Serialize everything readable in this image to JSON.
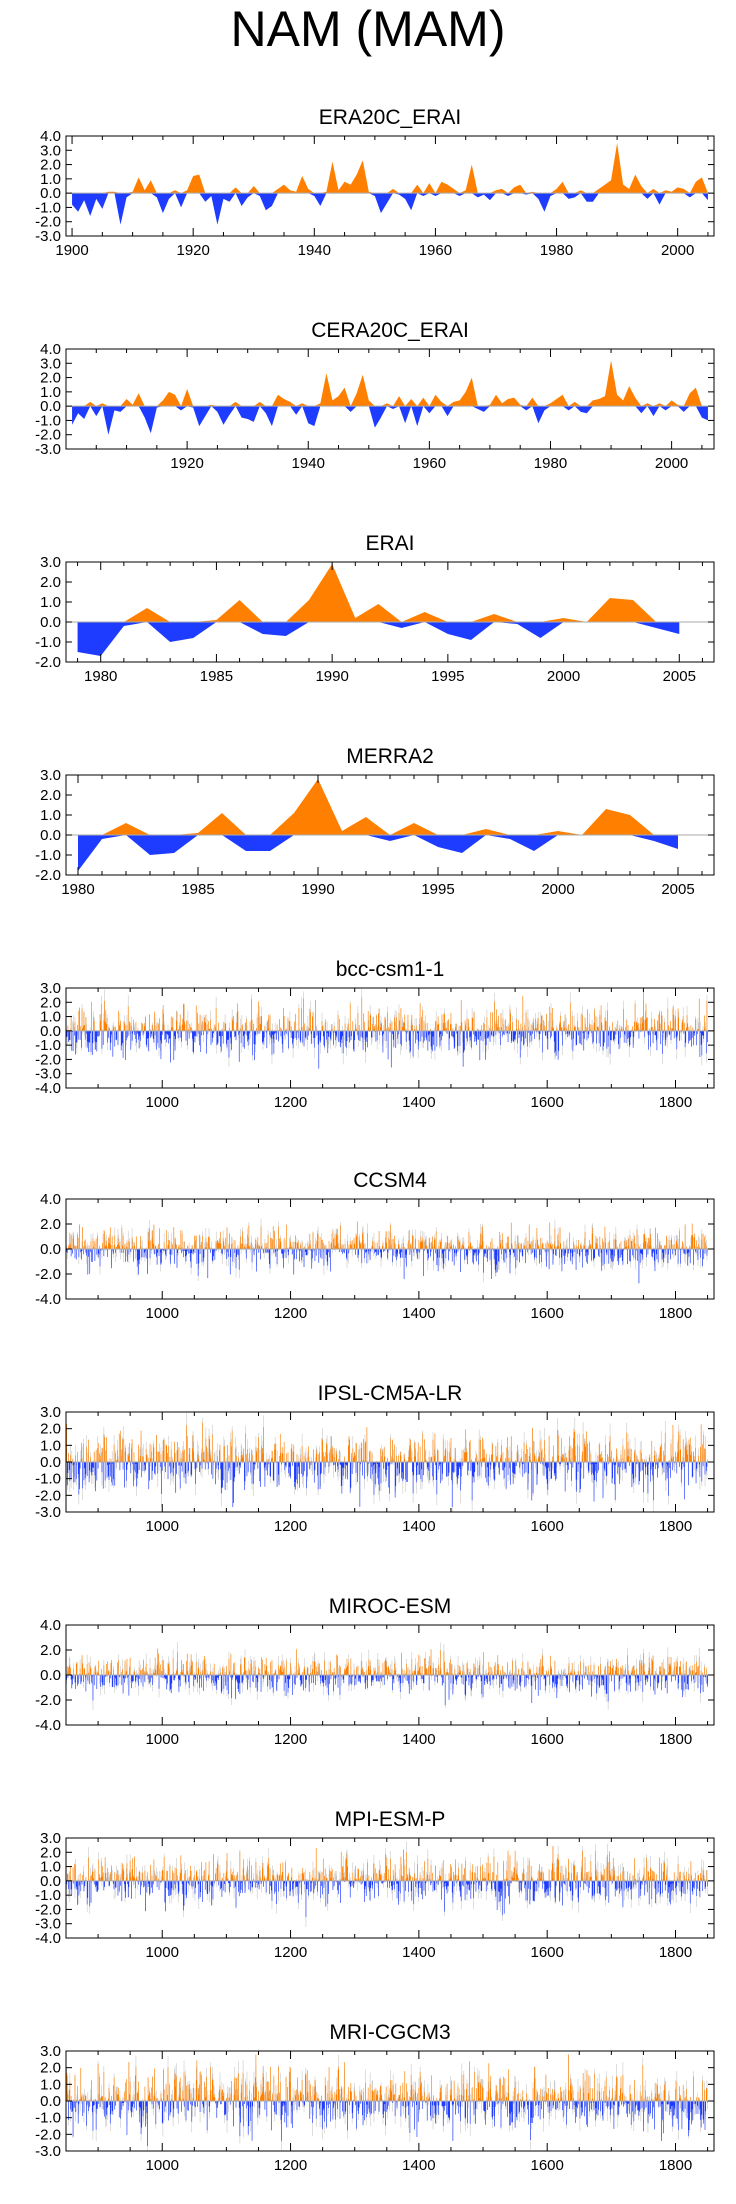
{
  "figure": {
    "title": "NAM (MAM)"
  },
  "chart_data": [
    {
      "type": "area",
      "title": "ERA20C_ERAI",
      "xlim": [
        1899,
        2006
      ],
      "ylim": [
        -3,
        4
      ],
      "yticks": [
        "4.0",
        "3.0",
        "2.0",
        "1.0",
        "0.0",
        "-1.0",
        "-2.0",
        "-3.0"
      ],
      "xticks": [
        1900,
        1920,
        1940,
        1960,
        1980,
        2000
      ],
      "x": [
        1900,
        1901,
        1902,
        1903,
        1904,
        1905,
        1906,
        1907,
        1908,
        1909,
        1910,
        1911,
        1912,
        1913,
        1914,
        1915,
        1916,
        1917,
        1918,
        1919,
        1920,
        1921,
        1922,
        1923,
        1924,
        1925,
        1926,
        1927,
        1928,
        1929,
        1930,
        1931,
        1932,
        1933,
        1934,
        1935,
        1936,
        1937,
        1938,
        1939,
        1940,
        1941,
        1942,
        1943,
        1944,
        1945,
        1946,
        1947,
        1948,
        1949,
        1950,
        1951,
        1952,
        1953,
        1954,
        1955,
        1956,
        1957,
        1958,
        1959,
        1960,
        1961,
        1962,
        1963,
        1964,
        1965,
        1966,
        1967,
        1968,
        1969,
        1970,
        1971,
        1972,
        1973,
        1974,
        1975,
        1976,
        1977,
        1978,
        1979,
        1980,
        1981,
        1982,
        1983,
        1984,
        1985,
        1986,
        1987,
        1988,
        1989,
        1990,
        1991,
        1992,
        1993,
        1994,
        1995,
        1996,
        1997,
        1998,
        1999,
        2000,
        2001,
        2002,
        2003,
        2004,
        2005
      ],
      "values": [
        -0.8,
        -1.3,
        -0.5,
        -1.6,
        -0.4,
        -1.1,
        0.1,
        0.1,
        -2.2,
        -0.3,
        0.1,
        1.1,
        0.2,
        0.9,
        -0.3,
        -1.4,
        -0.4,
        0.2,
        -1.0,
        0.2,
        1.2,
        1.3,
        -0.6,
        -0.2,
        -2.2,
        -0.4,
        -0.6,
        0.4,
        -0.9,
        -0.3,
        0.5,
        -0.2,
        -1.2,
        -0.9,
        0.3,
        0.6,
        0.2,
        0.1,
        1.2,
        0.3,
        -0.2,
        -0.9,
        0.1,
        2.2,
        0.2,
        0.8,
        0.6,
        1.3,
        2.3,
        0.1,
        -0.2,
        -1.4,
        -0.7,
        0.3,
        -0.1,
        -0.4,
        -1.2,
        0.6,
        -0.2,
        0.7,
        -0.2,
        0.8,
        0.6,
        0.3,
        -0.2,
        0.2,
        2.0,
        -0.3,
        -0.1,
        -0.5,
        0.2,
        0.3,
        -0.2,
        0.4,
        0.6,
        -0.1,
        0.1,
        -0.4,
        -1.3,
        -0.2,
        0.3,
        0.8,
        -0.4,
        -0.3,
        0.2,
        -0.6,
        -0.6,
        0.3,
        0.6,
        0.9,
        3.5,
        0.6,
        0.3,
        1.3,
        0.5,
        -0.4,
        0.3,
        -0.8,
        0.2,
        0.1,
        0.4,
        0.3,
        -0.3,
        0.8,
        1.1,
        -0.5
      ]
    },
    {
      "type": "area",
      "title": "CERA20C_ERAI",
      "xlim": [
        1900,
        2007
      ],
      "ylim": [
        -3,
        4
      ],
      "yticks": [
        "4.0",
        "3.0",
        "2.0",
        "1.0",
        "0.0",
        "-1.0",
        "-2.0",
        "-3.0"
      ],
      "xticks": [
        1920,
        1940,
        1960,
        1980,
        2000
      ],
      "x": [
        1901,
        1902,
        1903,
        1904,
        1905,
        1906,
        1907,
        1908,
        1909,
        1910,
        1911,
        1912,
        1913,
        1914,
        1915,
        1916,
        1917,
        1918,
        1919,
        1920,
        1921,
        1922,
        1923,
        1924,
        1925,
        1926,
        1927,
        1928,
        1929,
        1930,
        1931,
        1932,
        1933,
        1934,
        1935,
        1936,
        1937,
        1938,
        1939,
        1940,
        1941,
        1942,
        1943,
        1944,
        1945,
        1946,
        1947,
        1948,
        1949,
        1950,
        1951,
        1952,
        1953,
        1954,
        1955,
        1956,
        1957,
        1958,
        1959,
        1960,
        1961,
        1962,
        1963,
        1964,
        1965,
        1966,
        1967,
        1968,
        1969,
        1970,
        1971,
        1972,
        1973,
        1974,
        1975,
        1976,
        1977,
        1978,
        1979,
        1980,
        1981,
        1982,
        1983,
        1984,
        1985,
        1986,
        1987,
        1988,
        1989,
        1990,
        1991,
        1992,
        1993,
        1994,
        1995,
        1996,
        1997,
        1998,
        1999,
        2000,
        2001,
        2002,
        2003,
        2004,
        2005,
        2006
      ],
      "values": [
        -1.3,
        -0.5,
        -0.9,
        0.3,
        -0.7,
        0.2,
        -2.0,
        -0.3,
        -0.4,
        0.5,
        0.1,
        0.9,
        -0.8,
        -1.9,
        -0.1,
        0.4,
        1.0,
        0.8,
        -0.3,
        1.2,
        -0.1,
        -1.4,
        -0.7,
        0.1,
        -0.4,
        -1.3,
        -0.6,
        0.3,
        -0.8,
        -0.9,
        -1.1,
        0.3,
        -0.5,
        -1.4,
        0.8,
        0.5,
        0.3,
        -0.6,
        0.2,
        -1.2,
        -1.4,
        0.2,
        2.3,
        0.4,
        0.7,
        1.3,
        -0.4,
        0.9,
        2.2,
        0.4,
        -1.5,
        -0.8,
        0.2,
        -0.2,
        0.7,
        -1.2,
        0.5,
        -1.4,
        0.6,
        -0.5,
        0.8,
        0.3,
        -0.7,
        0.3,
        0.4,
        1.0,
        2.0,
        -0.2,
        -0.4,
        0.1,
        0.8,
        0.2,
        0.5,
        0.6,
        0.1,
        -0.3,
        0.6,
        -1.2,
        -0.3,
        0.2,
        0.5,
        0.8,
        -0.3,
        0.3,
        -0.4,
        -0.5,
        0.4,
        0.5,
        0.7,
        3.2,
        0.8,
        0.4,
        1.4,
        0.6,
        -0.5,
        0.2,
        -0.7,
        0.2,
        -0.3,
        0.4,
        0.1,
        -0.4,
        0.9,
        1.3,
        -0.8,
        -1.0
      ]
    },
    {
      "type": "area",
      "title": "ERAI",
      "xlim": [
        1978.5,
        2006.5
      ],
      "ylim": [
        -2,
        3
      ],
      "yticks": [
        "3.0",
        "2.0",
        "1.0",
        "0.0",
        "-1.0",
        "-2.0"
      ],
      "xticks": [
        1980,
        1985,
        1990,
        1995,
        2000,
        2005
      ],
      "x": [
        1979,
        1980,
        1981,
        1982,
        1983,
        1984,
        1985,
        1986,
        1987,
        1988,
        1989,
        1990,
        1991,
        1992,
        1993,
        1994,
        1995,
        1996,
        1997,
        1998,
        1999,
        2000,
        2001,
        2002,
        2003,
        2004,
        2005
      ],
      "values": [
        -1.5,
        -1.7,
        -0.2,
        0.7,
        -1.0,
        -0.8,
        0.1,
        1.1,
        -0.6,
        -0.7,
        1.1,
        2.9,
        0.2,
        0.9,
        -0.3,
        0.5,
        -0.6,
        -0.9,
        0.4,
        -0.1,
        -0.8,
        0.2,
        0.0,
        1.2,
        1.1,
        -0.3,
        -0.6
      ]
    },
    {
      "type": "area",
      "title": "MERRA2",
      "xlim": [
        1979.5,
        2006.5
      ],
      "ylim": [
        -2,
        3
      ],
      "yticks": [
        "3.0",
        "2.0",
        "1.0",
        "0.0",
        "-1.0",
        "-2.0"
      ],
      "xticks": [
        1980,
        1985,
        1990,
        1995,
        2000,
        2005
      ],
      "x": [
        1980,
        1981,
        1982,
        1983,
        1984,
        1985,
        1986,
        1987,
        1988,
        1989,
        1990,
        1991,
        1992,
        1993,
        1994,
        1995,
        1996,
        1997,
        1998,
        1999,
        2000,
        2001,
        2002,
        2003,
        2004,
        2005
      ],
      "values": [
        -1.8,
        -0.2,
        0.6,
        -1.0,
        -0.9,
        0.1,
        1.1,
        -0.8,
        -0.8,
        1.1,
        2.8,
        0.2,
        0.9,
        -0.3,
        0.6,
        -0.6,
        -0.9,
        0.3,
        -0.2,
        -0.8,
        0.2,
        0.0,
        1.3,
        1.0,
        -0.3,
        -0.7
      ]
    },
    {
      "type": "bar",
      "title": "bcc-csm1-1",
      "xlim": [
        850,
        1860
      ],
      "ylim": [
        -4,
        3
      ],
      "yticks": [
        "3.0",
        "2.0",
        "1.0",
        "0.0",
        "-1.0",
        "-2.0",
        "-3.0",
        "-4.0"
      ],
      "xticks": [
        1000,
        1200,
        1400,
        1600,
        1800
      ],
      "x_range": [
        850,
        1850
      ],
      "generated": true,
      "seed": 11,
      "amplitude": 1.1
    },
    {
      "type": "bar",
      "title": "CCSM4",
      "xlim": [
        850,
        1860
      ],
      "ylim": [
        -4,
        4
      ],
      "yticks": [
        "4.0",
        "2.0",
        "0.0",
        "-2.0",
        "-4.0"
      ],
      "xticks": [
        1000,
        1200,
        1400,
        1600,
        1800
      ],
      "x_range": [
        850,
        1850
      ],
      "generated": true,
      "seed": 23,
      "amplitude": 1.0
    },
    {
      "type": "bar",
      "title": "IPSL-CM5A-LR",
      "xlim": [
        850,
        1860
      ],
      "ylim": [
        -3,
        3
      ],
      "yticks": [
        "3.0",
        "2.0",
        "1.0",
        "0.0",
        "-1.0",
        "-2.0",
        "-3.0"
      ],
      "xticks": [
        1000,
        1200,
        1400,
        1600,
        1800
      ],
      "x_range": [
        850,
        1850
      ],
      "generated": true,
      "seed": 37,
      "amplitude": 1.15
    },
    {
      "type": "bar",
      "title": "MIROC-ESM",
      "xlim": [
        850,
        1860
      ],
      "ylim": [
        -4,
        4
      ],
      "yticks": [
        "4.0",
        "2.0",
        "0.0",
        "-2.0",
        "-4.0"
      ],
      "xticks": [
        1000,
        1200,
        1400,
        1600,
        1800
      ],
      "x_range": [
        850,
        1850
      ],
      "generated": true,
      "seed": 41,
      "amplitude": 1.0
    },
    {
      "type": "bar",
      "title": "MPI-ESM-P",
      "xlim": [
        850,
        1860
      ],
      "ylim": [
        -4,
        3
      ],
      "yticks": [
        "3.0",
        "2.0",
        "1.0",
        "0.0",
        "-1.0",
        "-2.0",
        "-3.0",
        "-4.0"
      ],
      "xticks": [
        1000,
        1200,
        1400,
        1600,
        1800
      ],
      "x_range": [
        850,
        1850
      ],
      "generated": true,
      "seed": 53,
      "amplitude": 1.05
    },
    {
      "type": "bar",
      "title": "MRI-CGCM3",
      "xlim": [
        850,
        1860
      ],
      "ylim": [
        -3,
        3
      ],
      "yticks": [
        "3.0",
        "2.0",
        "1.0",
        "0.0",
        "-1.0",
        "-2.0",
        "-3.0"
      ],
      "xticks": [
        1000,
        1200,
        1400,
        1600,
        1800
      ],
      "x_range": [
        850,
        1850
      ],
      "generated": true,
      "seed": 67,
      "amplitude": 1.1
    }
  ],
  "colors": {
    "positive": "#ff8000",
    "negative": "#1e3cff",
    "axis": "#000000",
    "zero_line": "#aaaaaa"
  }
}
